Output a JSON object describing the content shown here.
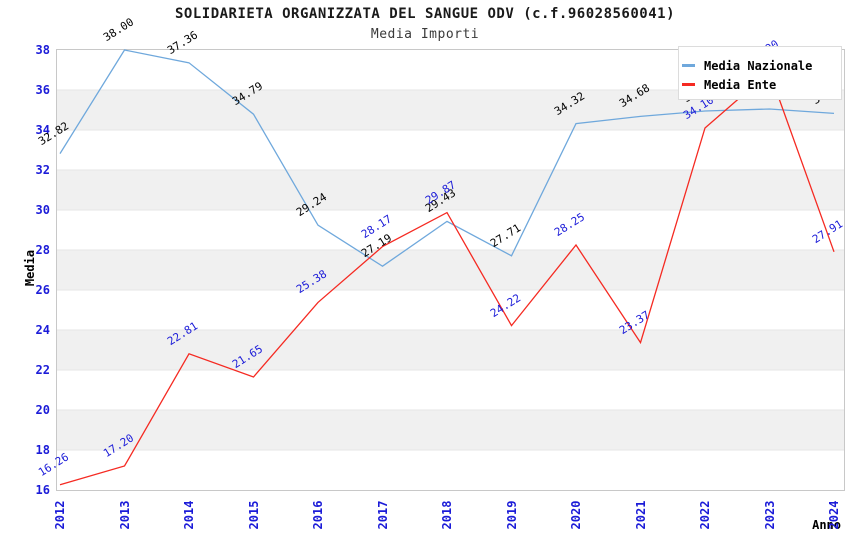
{
  "chart_data": {
    "type": "line",
    "title": "SOLIDARIETA ORGANIZZATA DEL SANGUE ODV (c.f.96028560041)",
    "subtitle": "Media Importi",
    "xlabel": "Anno",
    "ylabel": "Media",
    "ylim": [
      16,
      38
    ],
    "y_ticks": [
      16,
      18,
      20,
      22,
      24,
      26,
      28,
      30,
      32,
      34,
      36,
      38
    ],
    "grid": "horizontal-bands-every-2-units",
    "band_colors": [
      "#ffffff",
      "#f0f0f0"
    ],
    "legend_position": "top-right",
    "axis_tick_color": "#1b1bd8",
    "categories": [
      "2012",
      "2013",
      "2014",
      "2015",
      "2016",
      "2017",
      "2018",
      "2019",
      "2020",
      "2021",
      "2022",
      "2023",
      "2024"
    ],
    "series": [
      {
        "name": "Media Nazionale",
        "color": "#6fa8dc",
        "label_color": "#000000",
        "values": [
          32.82,
          38.0,
          37.36,
          34.79,
          29.24,
          27.19,
          29.43,
          27.71,
          34.32,
          34.68,
          34.95,
          35.05,
          34.83
        ],
        "labels": [
          "32.82",
          "38.00",
          "37.36",
          "34.79",
          "29.24",
          "27.19",
          "29.43",
          "27.71",
          "34.32",
          "34.68",
          "34.95",
          "35.05",
          "34.83"
        ]
      },
      {
        "name": "Media Ente",
        "color": "#f52a22",
        "label_color": "#1b1bd8",
        "values": [
          16.26,
          17.2,
          22.81,
          21.65,
          25.38,
          28.17,
          29.87,
          24.22,
          28.25,
          23.37,
          34.1,
          36.9,
          27.91
        ],
        "labels": [
          "16.26",
          "17.20",
          "22.81",
          "21.65",
          "25.38",
          "28.17",
          "29.87",
          "24.22",
          "28.25",
          "23.37",
          "34.10",
          "36.90",
          "27.91"
        ]
      }
    ]
  }
}
